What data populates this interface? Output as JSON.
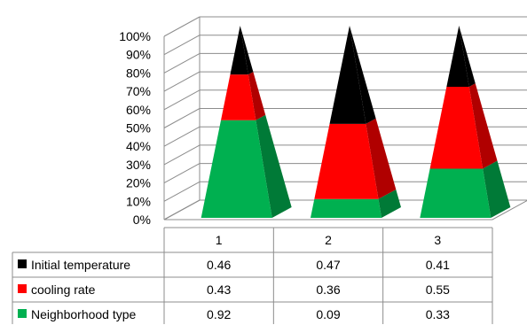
{
  "chart_data": {
    "type": "bar",
    "style": "3d-stacked-100%-pyramid",
    "categories": [
      "1",
      "2",
      "3"
    ],
    "series": [
      {
        "name": "Neighborhood type",
        "values": [
          0.92,
          0.09,
          0.33
        ],
        "color": "#00b050",
        "shade": "#007a37"
      },
      {
        "name": "cooling rate",
        "values": [
          0.43,
          0.36,
          0.55
        ],
        "color": "#ff0000",
        "shade": "#b00000"
      },
      {
        "name": "Initial temperature",
        "values": [
          0.46,
          0.47,
          0.41
        ],
        "color": "#000000",
        "shade": "#000000"
      }
    ],
    "y_ticks": [
      "0%",
      "10%",
      "20%",
      "30%",
      "40%",
      "50%",
      "60%",
      "70%",
      "80%",
      "90%",
      "100%"
    ],
    "ylim": [
      0,
      1
    ],
    "grid": true,
    "data_table": {
      "row_order": [
        "Initial temperature",
        "cooling rate",
        "Neighborhood type"
      ],
      "rows": [
        {
          "label": "Initial temperature",
          "values": [
            "0.46",
            "0.47",
            "0.41"
          ]
        },
        {
          "label": "cooling rate",
          "values": [
            "0.43",
            "0.36",
            "0.55"
          ]
        },
        {
          "label": "Neighborhood type",
          "values": [
            "0.92",
            "0.09",
            "0.33"
          ]
        }
      ]
    }
  }
}
